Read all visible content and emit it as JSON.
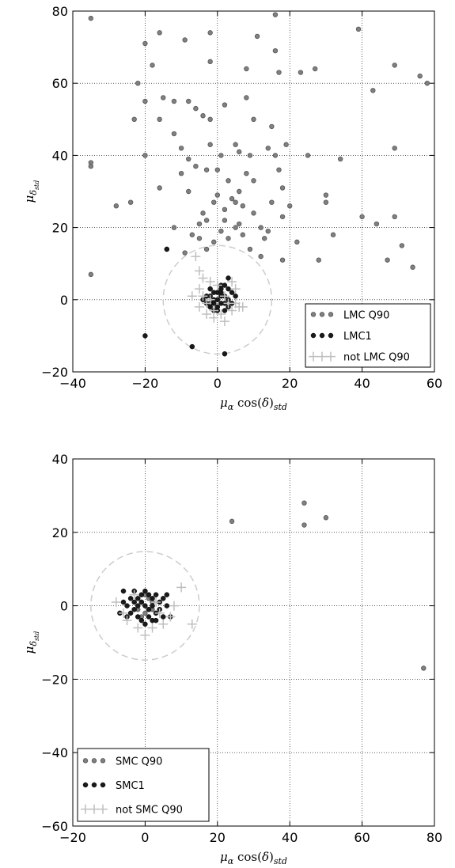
{
  "chart_data": [
    {
      "type": "scatter",
      "xlim": [
        -40,
        60
      ],
      "ylim": [
        -20,
        80
      ],
      "xticks": [
        "−40",
        "−20",
        "0",
        "20",
        "40",
        "60"
      ],
      "xtick_values": [
        -40,
        -20,
        0,
        20,
        40,
        60
      ],
      "yticks": [
        "−20",
        "0",
        "20",
        "40",
        "60",
        "80"
      ],
      "ytick_values": [
        -20,
        0,
        20,
        40,
        60,
        80
      ],
      "xlabel": "μα cos(δ)std",
      "ylabel": "μδstd",
      "grid": true,
      "legend_position": "lower-right",
      "circle_radius": 15,
      "series": [
        {
          "name": "LMC Q90",
          "marker": "circle",
          "color": "#808080",
          "points": [
            [
              -35,
              78
            ],
            [
              16,
              79
            ],
            [
              -20,
              71
            ],
            [
              -16,
              74
            ],
            [
              -9,
              72
            ],
            [
              -2,
              74
            ],
            [
              11,
              73
            ],
            [
              39,
              75
            ],
            [
              -22,
              60
            ],
            [
              -18,
              65
            ],
            [
              -2,
              66
            ],
            [
              8,
              64
            ],
            [
              16,
              69
            ],
            [
              17,
              63
            ],
            [
              23,
              63
            ],
            [
              27,
              64
            ],
            [
              49,
              65
            ],
            [
              56,
              62
            ],
            [
              58,
              60
            ],
            [
              -23,
              50
            ],
            [
              -20,
              55
            ],
            [
              -15,
              56
            ],
            [
              -12,
              55
            ],
            [
              -8,
              55
            ],
            [
              -6,
              53
            ],
            [
              -4,
              51
            ],
            [
              -2,
              50
            ],
            [
              2,
              54
            ],
            [
              8,
              56
            ],
            [
              10,
              50
            ],
            [
              15,
              48
            ],
            [
              19,
              43
            ],
            [
              43,
              58
            ],
            [
              -16,
              50
            ],
            [
              -12,
              46
            ],
            [
              -10,
              42
            ],
            [
              -8,
              39
            ],
            [
              -6,
              37
            ],
            [
              -3,
              36
            ],
            [
              -2,
              43
            ],
            [
              0,
              36
            ],
            [
              5,
              43
            ],
            [
              6,
              41
            ],
            [
              9,
              40
            ],
            [
              14,
              42
            ],
            [
              16,
              40
            ],
            [
              17,
              36
            ],
            [
              18,
              31
            ],
            [
              10,
              33
            ],
            [
              8,
              35
            ],
            [
              6,
              30
            ],
            [
              4,
              28
            ],
            [
              2,
              25
            ],
            [
              -1,
              27
            ],
            [
              -3,
              22
            ],
            [
              -5,
              21
            ],
            [
              -8,
              30
            ],
            [
              -10,
              35
            ],
            [
              -16,
              31
            ],
            [
              -20,
              40
            ],
            [
              -24,
              27
            ],
            [
              -28,
              26
            ],
            [
              -35,
              38
            ],
            [
              -35,
              37
            ],
            [
              -35,
              7
            ],
            [
              1,
              40
            ],
            [
              3,
              33
            ],
            [
              5,
              27
            ],
            [
              7,
              26
            ],
            [
              12,
              20
            ],
            [
              13,
              17
            ],
            [
              14,
              19
            ],
            [
              18,
              23
            ],
            [
              20,
              26
            ],
            [
              22,
              16
            ],
            [
              18,
              11
            ],
            [
              12,
              12
            ],
            [
              9,
              14
            ],
            [
              7,
              18
            ],
            [
              5,
              20
            ],
            [
              3,
              17
            ],
            [
              1,
              19
            ],
            [
              -1,
              16
            ],
            [
              -3,
              14
            ],
            [
              -5,
              17
            ],
            [
              -7,
              18
            ],
            [
              -9,
              13
            ],
            [
              -12,
              20
            ],
            [
              -14,
              14
            ],
            [
              25,
              40
            ],
            [
              30,
              29
            ],
            [
              30,
              27
            ],
            [
              34,
              39
            ],
            [
              40,
              23
            ],
            [
              44,
              21
            ],
            [
              47,
              11
            ],
            [
              49,
              23
            ],
            [
              49,
              42
            ],
            [
              51,
              15
            ],
            [
              54,
              9
            ],
            [
              28,
              11
            ],
            [
              32,
              18
            ],
            [
              -20,
              40
            ],
            [
              -4,
              24
            ],
            [
              0,
              29
            ],
            [
              2,
              22
            ],
            [
              6,
              21
            ],
            [
              10,
              24
            ],
            [
              15,
              27
            ]
          ]
        },
        {
          "name": "LMC1",
          "marker": "dot",
          "color": "#1a1a1a",
          "points": [
            [
              -20,
              -10
            ],
            [
              -7,
              -13
            ],
            [
              2,
              -15
            ],
            [
              -14,
              14
            ],
            [
              3,
              6
            ],
            [
              1,
              4
            ],
            [
              -2,
              3
            ],
            [
              0,
              2
            ],
            [
              2,
              1
            ],
            [
              -1,
              0
            ],
            [
              1,
              -1
            ],
            [
              -2,
              -2
            ],
            [
              0,
              -3
            ],
            [
              3,
              -2
            ],
            [
              4,
              2
            ],
            [
              -3,
              1
            ],
            [
              1,
              3
            ],
            [
              -1,
              -1
            ],
            [
              2,
              -1
            ],
            [
              0,
              0
            ],
            [
              -2,
              1
            ],
            [
              3,
              0
            ],
            [
              1,
              2
            ],
            [
              -1,
              2
            ],
            [
              4,
              -1
            ],
            [
              -3,
              -1
            ],
            [
              2,
              4
            ],
            [
              0,
              -2
            ],
            [
              1,
              1
            ],
            [
              -1,
              -3
            ],
            [
              3,
              3
            ],
            [
              -2,
              -1
            ],
            [
              5,
              1
            ],
            [
              -4,
              0
            ],
            [
              2,
              -3
            ]
          ]
        },
        {
          "name": "not LMC Q90",
          "marker": "plus",
          "color": "#bfbfbf",
          "points": [
            [
              -6,
              12
            ],
            [
              -5,
              8
            ],
            [
              -4,
              6
            ],
            [
              -5,
              3
            ],
            [
              -4,
              1
            ],
            [
              -3,
              -1
            ],
            [
              -5,
              -2
            ],
            [
              -3,
              -4
            ],
            [
              -1,
              -5
            ],
            [
              1,
              -4
            ],
            [
              2,
              -6
            ],
            [
              4,
              -3
            ],
            [
              5,
              -1
            ],
            [
              6,
              -2
            ],
            [
              7,
              -2
            ],
            [
              5,
              3
            ],
            [
              4,
              5
            ],
            [
              -2,
              5
            ],
            [
              0,
              4
            ],
            [
              -1,
              -3
            ],
            [
              -7,
              1
            ],
            [
              3,
              -1
            ],
            [
              2,
              1
            ],
            [
              -2,
              0
            ]
          ]
        }
      ],
      "legend": [
        "LMC Q90",
        "LMC1",
        "not LMC Q90"
      ]
    },
    {
      "type": "scatter",
      "xlim": [
        -20,
        80
      ],
      "ylim": [
        -60,
        40
      ],
      "xticks": [
        "−20",
        "0",
        "20",
        "40",
        "60",
        "80"
      ],
      "xtick_values": [
        -20,
        0,
        20,
        40,
        60,
        80
      ],
      "yticks": [
        "−60",
        "−40",
        "−20",
        "0",
        "20",
        "40"
      ],
      "ytick_values": [
        -60,
        -40,
        -20,
        0,
        20,
        40
      ],
      "xlabel": "μα cos(δ)std",
      "ylabel": "μδstd",
      "grid": true,
      "legend_position": "lower-left",
      "circle_radius": 15,
      "series": [
        {
          "name": "SMC Q90",
          "marker": "circle",
          "color": "#808080",
          "points": [
            [
              24,
              23
            ],
            [
              44,
              28
            ],
            [
              44,
              22
            ],
            [
              50,
              24
            ],
            [
              77,
              -17
            ],
            [
              0,
              3
            ],
            [
              -1,
              1
            ],
            [
              1,
              -1
            ],
            [
              2,
              1
            ],
            [
              -2,
              -1
            ],
            [
              0,
              -2
            ],
            [
              1,
              2
            ],
            [
              -1,
              -3
            ],
            [
              2,
              -1
            ]
          ]
        },
        {
          "name": "SMC1",
          "marker": "dot",
          "color": "#1a1a1a",
          "points": [
            [
              -7,
              -2
            ],
            [
              -6,
              1
            ],
            [
              -5,
              -3
            ],
            [
              -4,
              2
            ],
            [
              -3,
              -1
            ],
            [
              -3,
              4
            ],
            [
              -2,
              -3
            ],
            [
              -2,
              2
            ],
            [
              -1,
              -4
            ],
            [
              -1,
              3
            ],
            [
              0,
              -5
            ],
            [
              0,
              4
            ],
            [
              1,
              -3
            ],
            [
              1,
              3
            ],
            [
              2,
              -4
            ],
            [
              2,
              2
            ],
            [
              3,
              -2
            ],
            [
              3,
              3
            ],
            [
              4,
              -1
            ],
            [
              4,
              1
            ],
            [
              5,
              -3
            ],
            [
              5,
              2
            ],
            [
              6,
              0
            ],
            [
              7,
              -3
            ],
            [
              -5,
              0
            ],
            [
              -4,
              -2
            ],
            [
              -2,
              0
            ],
            [
              0,
              0
            ],
            [
              2,
              0
            ],
            [
              3,
              -4
            ],
            [
              -6,
              4
            ],
            [
              6,
              3
            ],
            [
              -1,
              1
            ],
            [
              1,
              -1
            ],
            [
              -3,
              1
            ]
          ]
        },
        {
          "name": "not SMC Q90",
          "marker": "plus",
          "color": "#bfbfbf",
          "points": [
            [
              -8,
              1
            ],
            [
              -6,
              -2
            ],
            [
              -5,
              -4
            ],
            [
              0,
              -8
            ],
            [
              2,
              -6
            ],
            [
              4,
              -2
            ],
            [
              7,
              -3
            ],
            [
              8,
              0
            ],
            [
              10,
              5
            ],
            [
              13,
              -5
            ],
            [
              -3,
              3
            ],
            [
              3,
              1
            ],
            [
              5,
              -5
            ],
            [
              -2,
              -6
            ]
          ]
        }
      ],
      "legend": [
        "SMC Q90",
        "SMC1",
        "not SMC Q90"
      ]
    }
  ]
}
